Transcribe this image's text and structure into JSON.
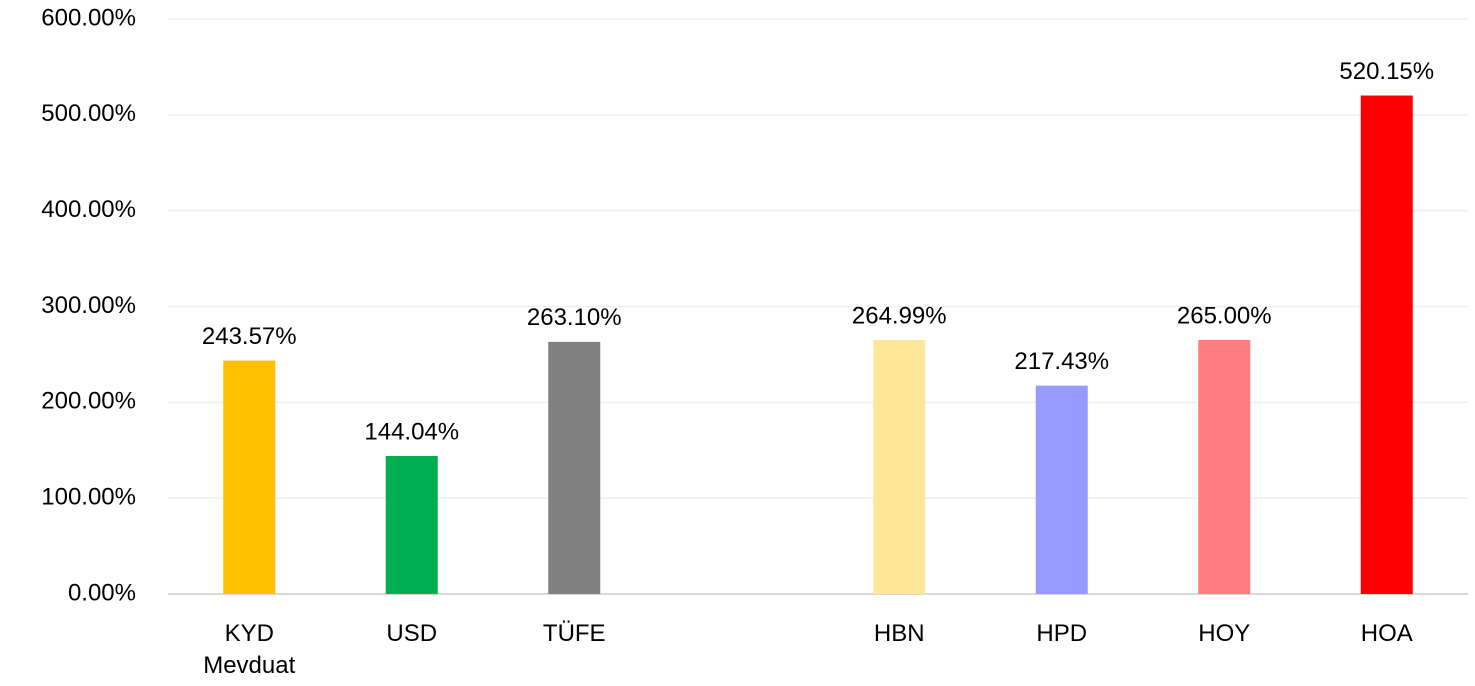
{
  "chart_data": {
    "type": "bar",
    "categories": [
      "KYD Mevduat",
      "USD",
      "TÜFE",
      null,
      "HBN",
      "HPD",
      "HOY",
      "HOA"
    ],
    "values": [
      243.57,
      144.04,
      263.1,
      null,
      264.99,
      217.43,
      265.0,
      520.15
    ],
    "value_labels": [
      "243.57%",
      "144.04%",
      "263.10%",
      null,
      "264.99%",
      "217.43%",
      "265.00%",
      "520.15%"
    ],
    "colors": [
      "#FFC000",
      "#00B050",
      "#808080",
      null,
      "#FFE699",
      "#9999FF",
      "#FF7C80",
      "#FF0000"
    ],
    "ylim": [
      0,
      600
    ],
    "yticks": [
      {
        "value": 0,
        "label": "0.00%"
      },
      {
        "value": 100,
        "label": "100.00%"
      },
      {
        "value": 200,
        "label": "200.00%"
      },
      {
        "value": 300,
        "label": "300.00%"
      },
      {
        "value": 400,
        "label": "400.00%"
      },
      {
        "value": 500,
        "label": "500.00%"
      },
      {
        "value": 600,
        "label": "600.00%"
      }
    ],
    "grid": true
  }
}
